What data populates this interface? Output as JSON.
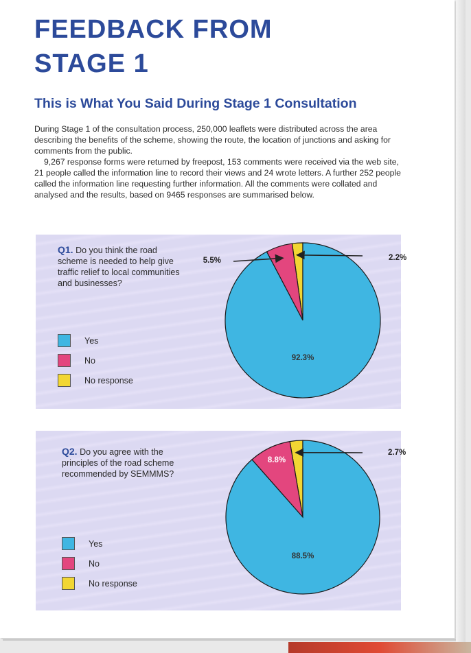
{
  "page": {
    "title_line1": "FEEDBACK FROM",
    "title_line2": "STAGE 1",
    "subtitle": "This is What You Said During Stage 1 Consultation",
    "para1": "During Stage 1 of the consultation process, 250,000 leaflets were distributed across the area describing the benefits of the scheme, showing the route, the location of junctions and asking for comments from the public.",
    "para2": "9,267 response forms were returned by freepost, 153 comments were received via the web site, 21 people called the information line to record their views and 24 wrote letters. A further 252 people called the information line requesting further information. All the comments were collated and analysed and the results, based on 9465 responses are summarised below."
  },
  "colors": {
    "title": "#2c4a9a",
    "yes": "#3fb6e2",
    "no": "#e3467e",
    "no_response": "#f2d633",
    "panel": "#dcd9f2"
  },
  "questions": [
    {
      "number": "Q1.",
      "text": "Do you think the road scheme is needed to help give traffic relief to local communities and businesses?",
      "legend": [
        "Yes",
        "No",
        "No response"
      ]
    },
    {
      "number": "Q2.",
      "text": "Do you agree with the principles of the road scheme recommended by SEMMMS?",
      "legend": [
        "Yes",
        "No",
        "No response"
      ]
    }
  ],
  "chart_data": [
    {
      "type": "pie",
      "categories": [
        "Yes",
        "No",
        "No response"
      ],
      "values": [
        92.3,
        5.5,
        2.2
      ],
      "labels": [
        "92.3%",
        "5.5%",
        "2.2%"
      ]
    },
    {
      "type": "pie",
      "categories": [
        "Yes",
        "No",
        "No response"
      ],
      "values": [
        88.5,
        8.8,
        2.7
      ],
      "labels": [
        "88.5%",
        "8.8%",
        "2.7%"
      ]
    }
  ]
}
